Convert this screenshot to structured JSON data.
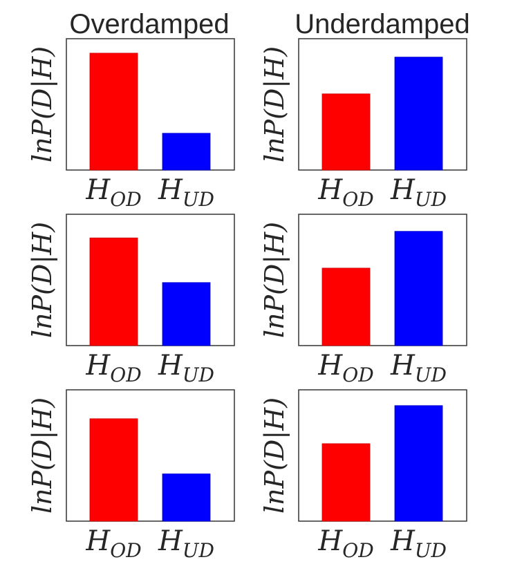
{
  "chart_data": {
    "type": "bar",
    "layout": {
      "rows": 3,
      "cols": 2
    },
    "column_titles": [
      "Overdamped",
      "Underdamped"
    ],
    "ylabel": "lnP(D|H)",
    "categories": [
      {
        "base": "H",
        "sub": "OD"
      },
      {
        "base": "H",
        "sub": "UD"
      }
    ],
    "colors": [
      "#ff0000",
      "#0000ff"
    ],
    "ylim": [
      0,
      1
    ],
    "yticks": "none",
    "grid": false,
    "panels": [
      {
        "row": 1,
        "col": 1,
        "column_title": "Overdamped",
        "values": [
          0.89,
          0.28
        ]
      },
      {
        "row": 1,
        "col": 2,
        "column_title": "Underdamped",
        "values": [
          0.58,
          0.86
        ]
      },
      {
        "row": 2,
        "col": 1,
        "column_title": "Overdamped",
        "values": [
          0.82,
          0.48
        ]
      },
      {
        "row": 2,
        "col": 2,
        "column_title": "Underdamped",
        "values": [
          0.59,
          0.87
        ]
      },
      {
        "row": 3,
        "col": 1,
        "column_title": "Overdamped",
        "values": [
          0.78,
          0.36
        ]
      },
      {
        "row": 3,
        "col": 2,
        "column_title": "Underdamped",
        "values": [
          0.59,
          0.88
        ]
      }
    ]
  }
}
